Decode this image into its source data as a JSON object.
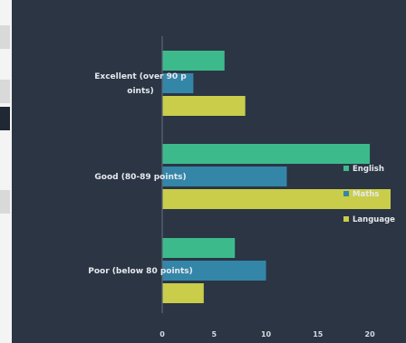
{
  "chart_data": {
    "type": "bar",
    "orientation": "horizontal",
    "categories": [
      "Excellent (over 90 points)",
      "Good (80-89 points)",
      "Poor (below 80 points)"
    ],
    "series": [
      {
        "name": "English",
        "color": "#3dba8c",
        "values": [
          6,
          20,
          7
        ]
      },
      {
        "name": "Maths",
        "color": "#3486a8",
        "values": [
          3,
          12,
          10
        ]
      },
      {
        "name": "Language",
        "color": "#c9cd4a",
        "values": [
          8,
          22,
          4
        ]
      }
    ],
    "xlim": [
      0,
      22
    ],
    "xticks": [
      "0",
      "5",
      "10",
      "15",
      "20"
    ],
    "legend_position": "right",
    "grid": false,
    "background": "#2b3544"
  }
}
